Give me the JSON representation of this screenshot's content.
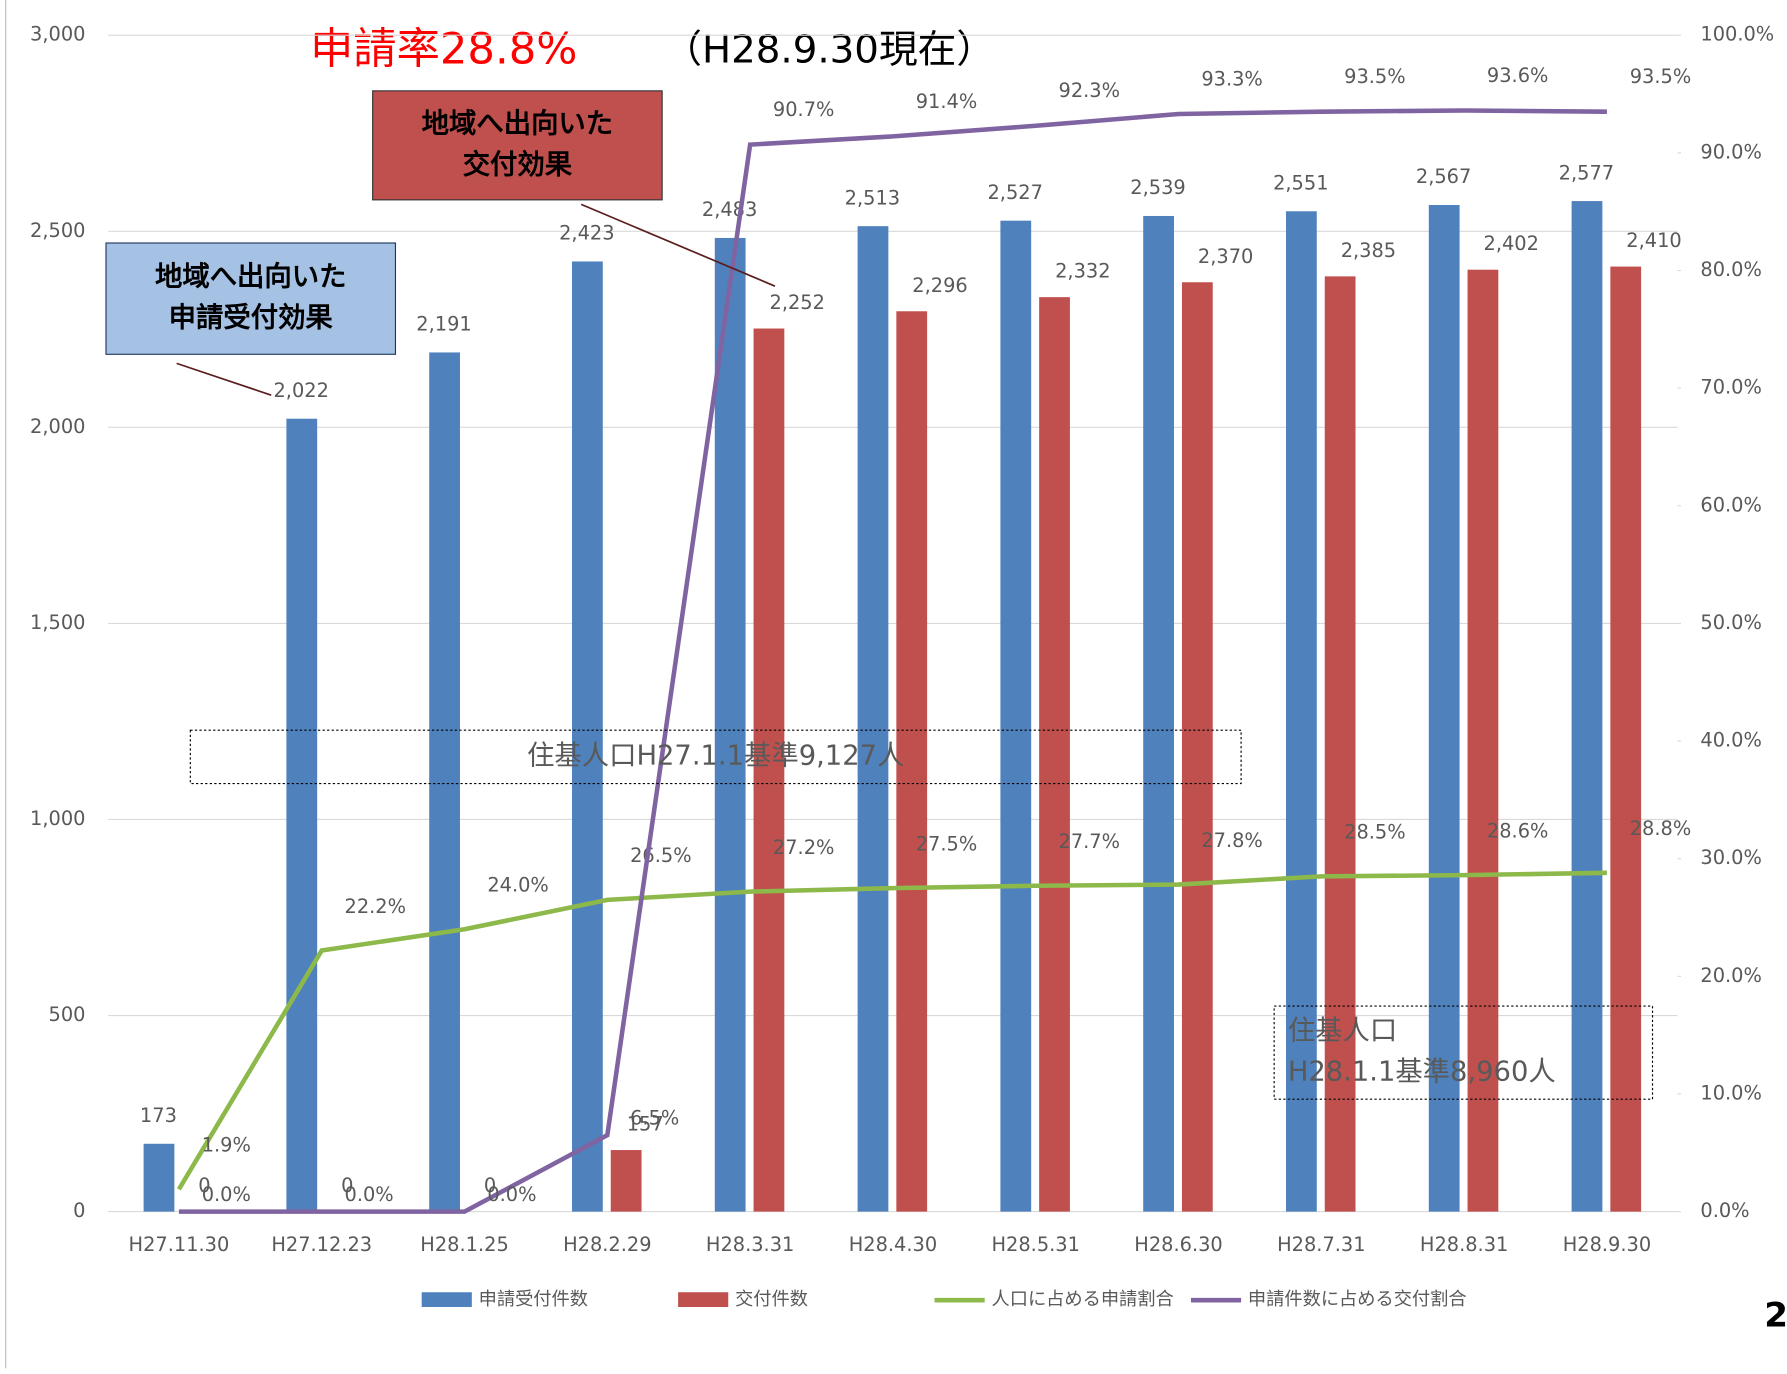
{
  "chart_data": {
    "type": "bar",
    "title_parts": [
      "申請率28.8%",
      "（H28.9.30現在）"
    ],
    "page_number": "2",
    "categories": [
      "H27.11.30",
      "H27.12.23",
      "H28.1.25",
      "H28.2.29",
      "H28.3.31",
      "H28.4.30",
      "H28.5.31",
      "H28.6.30",
      "H28.7.31",
      "H28.8.31",
      "H28.9.30"
    ],
    "series": [
      {
        "name": "申請受付件数",
        "type": "bar",
        "color": "#4f81bd",
        "values": [
          173,
          2022,
          2191,
          2423,
          2483,
          2513,
          2527,
          2539,
          2551,
          2567,
          2577
        ],
        "value_labels": [
          "173",
          "2,022",
          "2,191",
          "2,423",
          "2,483",
          "2,513",
          "2,527",
          "2,539",
          "2,551",
          "2,567",
          "2,577"
        ]
      },
      {
        "name": "交付件数",
        "type": "bar",
        "color": "#c0504d",
        "values": [
          0,
          0,
          0,
          157,
          2252,
          2296,
          2332,
          2370,
          2385,
          2402,
          2410
        ],
        "value_labels": [
          "0",
          "0",
          "0",
          "157",
          "2,252",
          "2,296",
          "2,332",
          "2,370",
          "2,385",
          "2,402",
          "2,410"
        ]
      },
      {
        "name": "人口に占める申請割合",
        "type": "line",
        "axis": "y2",
        "color": "#8db84a",
        "values": [
          1.9,
          22.2,
          24.0,
          26.5,
          27.2,
          27.5,
          27.7,
          27.8,
          28.5,
          28.6,
          28.8
        ],
        "value_labels": [
          "1.9%",
          "22.2%",
          "24.0%",
          "26.5%",
          "27.2%",
          "27.5%",
          "27.7%",
          "27.8%",
          "28.5%",
          "28.6%",
          "28.8%"
        ]
      },
      {
        "name": "申請件数に占める交付割合",
        "type": "line",
        "axis": "y2",
        "color": "#8064a2",
        "values": [
          0.0,
          0.0,
          0.0,
          6.5,
          90.7,
          91.4,
          92.3,
          93.3,
          93.5,
          93.6,
          93.5
        ],
        "value_labels": [
          "0.0%",
          "0.0%",
          "0.0%",
          "6.5%",
          "90.7%",
          "91.4%",
          "92.3%",
          "93.3%",
          "93.5%",
          "93.6%",
          "93.5%"
        ]
      }
    ],
    "ylim": [
      0,
      3000
    ],
    "yticks": [
      0,
      500,
      {
        "value": 1000,
        "label": "1,000"
      },
      {
        "value": 1500,
        "label": "1,500"
      },
      {
        "value": 2000,
        "label": "2,000"
      },
      {
        "value": 2500,
        "label": "2,500"
      },
      {
        "value": 3000,
        "label": "3,000"
      }
    ],
    "y2lim": [
      0,
      100
    ],
    "y2ticks": [
      {
        "value": 0,
        "label": "0.0%"
      },
      {
        "value": 10,
        "label": "10.0%"
      },
      {
        "value": 20,
        "label": "20.0%"
      },
      {
        "value": 30,
        "label": "30.0%"
      },
      {
        "value": 40,
        "label": "40.0%"
      },
      {
        "value": 50,
        "label": "50.0%"
      },
      {
        "value": 60,
        "label": "60.0%"
      },
      {
        "value": 70,
        "label": "70.0%"
      },
      {
        "value": 80,
        "label": "80.0%"
      },
      {
        "value": 90,
        "label": "90.0%"
      },
      {
        "value": 100,
        "label": "100.0%"
      }
    ],
    "grid": true,
    "legend": "bottom",
    "annotations": [
      {
        "lines": [
          "地域へ出向いた",
          "交付効果"
        ]
      },
      {
        "lines": [
          "地域へ出向いた",
          "申請受付効果"
        ]
      },
      {
        "lines": [
          "住基人口H27.1.1基準9,127人"
        ]
      },
      {
        "lines": [
          "住基人口",
          "H28.1.1基準8,960人"
        ]
      }
    ]
  }
}
